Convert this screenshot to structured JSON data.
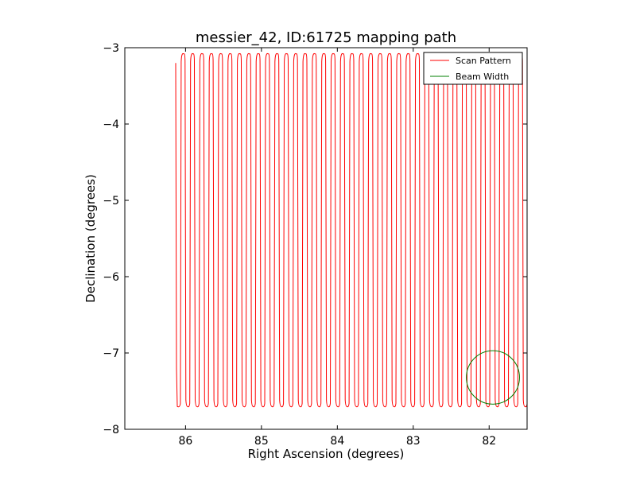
{
  "chart_data": {
    "type": "line",
    "title": "messier_42, ID:61725 mapping path",
    "xlabel": "Right Ascension (degrees)",
    "ylabel": "Declination (degrees)",
    "xlim": [
      86.8,
      81.5
    ],
    "ylim": [
      -8,
      -3
    ],
    "x_ticks": [
      86,
      85,
      84,
      83,
      82
    ],
    "x_tick_labels": [
      "86",
      "85",
      "84",
      "83",
      "82"
    ],
    "y_ticks": [
      -3,
      -4,
      -5,
      -6,
      -7,
      -8
    ],
    "y_tick_labels": [
      "−3",
      "−4",
      "−5",
      "−6",
      "−7",
      "−8"
    ],
    "grid": false,
    "legend_position": "top-right",
    "series": [
      {
        "name": "Scan Pattern",
        "color": "#ff0000",
        "pattern": "raster",
        "ra_start": 86.13,
        "ra_end": 81.5,
        "dec_top": -3.08,
        "dec_bottom": -7.7,
        "leg_spacing": 0.1235
      },
      {
        "name": "Beam Width",
        "color": "#007f00",
        "shape": "circle",
        "center_ra": 81.95,
        "center_dec": -7.32,
        "radius_deg": 0.35
      }
    ]
  }
}
